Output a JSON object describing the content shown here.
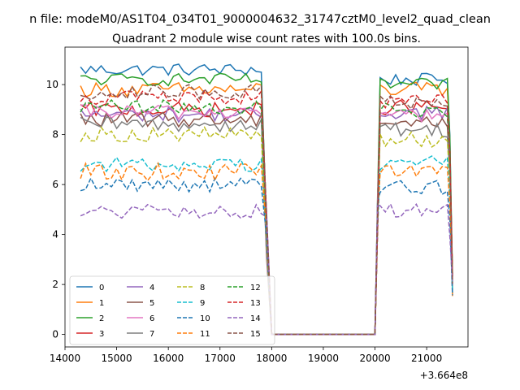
{
  "figure": {
    "suptitle": "n file: modeM0/AS1T04_034T01_9000004632_31747cztM0_level2_quad_clean",
    "title": "Quadrant 2 module wise count rates with 100.0s bins.",
    "offset_label": "+3.664e8"
  },
  "chart_data": {
    "type": "line",
    "title": "Quadrant 2 module wise count rates with 100.0s bins.",
    "xlabel": "",
    "ylabel": "",
    "x_offset": 366400000,
    "xlim": [
      14000,
      21800
    ],
    "ylim": [
      -0.5,
      11.5
    ],
    "xticks": [
      14000,
      15000,
      16000,
      17000,
      18000,
      19000,
      20000,
      21000
    ],
    "yticks": [
      0,
      2,
      4,
      6,
      8,
      10
    ],
    "grid": false,
    "legend": {
      "placement": "lower-left",
      "columns": 4
    },
    "segments": {
      "x_start_1": 14300,
      "x_end_1": 17800,
      "x_start_2": 20100,
      "x_end_2": 21400,
      "bin": 100,
      "gap_value": 0
    },
    "series": [
      {
        "name": "0",
        "color": "#1f77b4",
        "dash": "solid",
        "level1": 10.6,
        "level2": 10.2,
        "amp": 0.25
      },
      {
        "name": "1",
        "color": "#ff7f0e",
        "dash": "solid",
        "level1": 9.8,
        "level2": 9.8,
        "amp": 0.3
      },
      {
        "name": "2",
        "color": "#2ca02c",
        "dash": "solid",
        "level1": 10.2,
        "level2": 10.0,
        "amp": 0.25
      },
      {
        "name": "3",
        "color": "#d62728",
        "dash": "solid",
        "level1": 9.0,
        "level2": 9.1,
        "amp": 0.3
      },
      {
        "name": "4",
        "color": "#9467bd",
        "dash": "solid",
        "level1": 8.8,
        "level2": 8.9,
        "amp": 0.3
      },
      {
        "name": "5",
        "color": "#8c564b",
        "dash": "solid",
        "level1": 8.6,
        "level2": 8.5,
        "amp": 0.3
      },
      {
        "name": "6",
        "color": "#e377c2",
        "dash": "solid",
        "level1": 8.9,
        "level2": 8.8,
        "amp": 0.3
      },
      {
        "name": "7",
        "color": "#7f7f7f",
        "dash": "solid",
        "level1": 8.4,
        "level2": 8.2,
        "amp": 0.3
      },
      {
        "name": "8",
        "color": "#bcbd22",
        "dash": "dashed",
        "level1": 8.0,
        "level2": 7.8,
        "amp": 0.3
      },
      {
        "name": "9",
        "color": "#17becf",
        "dash": "dashed",
        "level1": 6.8,
        "level2": 6.9,
        "amp": 0.3
      },
      {
        "name": "10",
        "color": "#1f77b4",
        "dash": "dashed",
        "level1": 6.0,
        "level2": 5.9,
        "amp": 0.3
      },
      {
        "name": "11",
        "color": "#ff7f0e",
        "dash": "dashed",
        "level1": 6.5,
        "level2": 6.6,
        "amp": 0.35
      },
      {
        "name": "12",
        "color": "#2ca02c",
        "dash": "dashed",
        "level1": 9.1,
        "level2": 9.0,
        "amp": 0.3
      },
      {
        "name": "13",
        "color": "#d62728",
        "dash": "dashed",
        "level1": 9.5,
        "level2": 9.3,
        "amp": 0.3
      },
      {
        "name": "14",
        "color": "#9467bd",
        "dash": "dashed",
        "level1": 4.9,
        "level2": 5.0,
        "amp": 0.3
      },
      {
        "name": "15",
        "color": "#8c564b",
        "dash": "dashed",
        "level1": 9.7,
        "level2": 9.3,
        "amp": 0.3
      }
    ]
  }
}
